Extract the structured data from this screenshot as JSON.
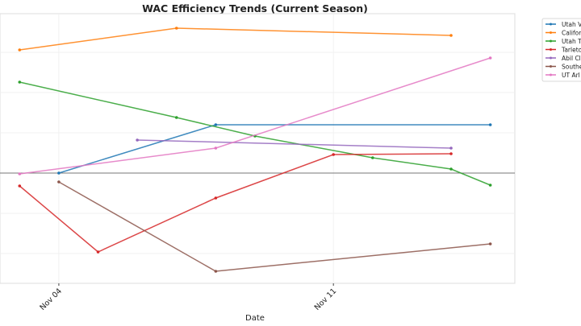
{
  "chart_data": {
    "type": "line",
    "title": "WAC Efficiency Trends (Current Season)",
    "xlabel": "Date",
    "ylabel": "",
    "x_ticks": [
      "Nov 04",
      "Nov 11"
    ],
    "xlim": [
      "2024-11-02T12:00",
      "2024-11-15T15:00"
    ],
    "ylim": [
      -2.74,
      3.96
    ],
    "grid": true,
    "zero_line": true,
    "legend_placement": "outside-top-right",
    "series": [
      {
        "name": "Utah V",
        "color": "#1f77b4",
        "points": [
          [
            "2024-11-04",
            0.0
          ],
          [
            "2024-11-08",
            1.2
          ],
          [
            "2024-11-15",
            1.2
          ]
        ]
      },
      {
        "name": "Califor",
        "color": "#ff7f0e",
        "points": [
          [
            "2024-11-03",
            3.06
          ],
          [
            "2024-11-07",
            3.6
          ],
          [
            "2024-11-14",
            3.42
          ]
        ]
      },
      {
        "name": "Utah T",
        "color": "#2ca02c",
        "points": [
          [
            "2024-11-03",
            2.26
          ],
          [
            "2024-11-07",
            1.38
          ],
          [
            "2024-11-09",
            0.92
          ],
          [
            "2024-11-12",
            0.38
          ],
          [
            "2024-11-14",
            0.1
          ],
          [
            "2024-11-15",
            -0.3
          ]
        ]
      },
      {
        "name": "Tarleto",
        "color": "#d62728",
        "points": [
          [
            "2024-11-03",
            -0.32
          ],
          [
            "2024-11-05",
            -1.96
          ],
          [
            "2024-11-08",
            -0.62
          ],
          [
            "2024-11-11",
            0.46
          ],
          [
            "2024-11-14",
            0.48
          ]
        ]
      },
      {
        "name": "Abil Cl",
        "color": "#9467bd",
        "points": [
          [
            "2024-11-06",
            0.82
          ],
          [
            "2024-11-14",
            0.62
          ]
        ]
      },
      {
        "name": "Southe",
        "color": "#8c564b",
        "points": [
          [
            "2024-11-04",
            -0.22
          ],
          [
            "2024-11-08",
            -2.44
          ],
          [
            "2024-11-15",
            -1.76
          ]
        ]
      },
      {
        "name": "UT Arl",
        "color": "#e377c2",
        "points": [
          [
            "2024-11-03",
            -0.02
          ],
          [
            "2024-11-08",
            0.62
          ],
          [
            "2024-11-15",
            2.86
          ]
        ]
      }
    ]
  }
}
